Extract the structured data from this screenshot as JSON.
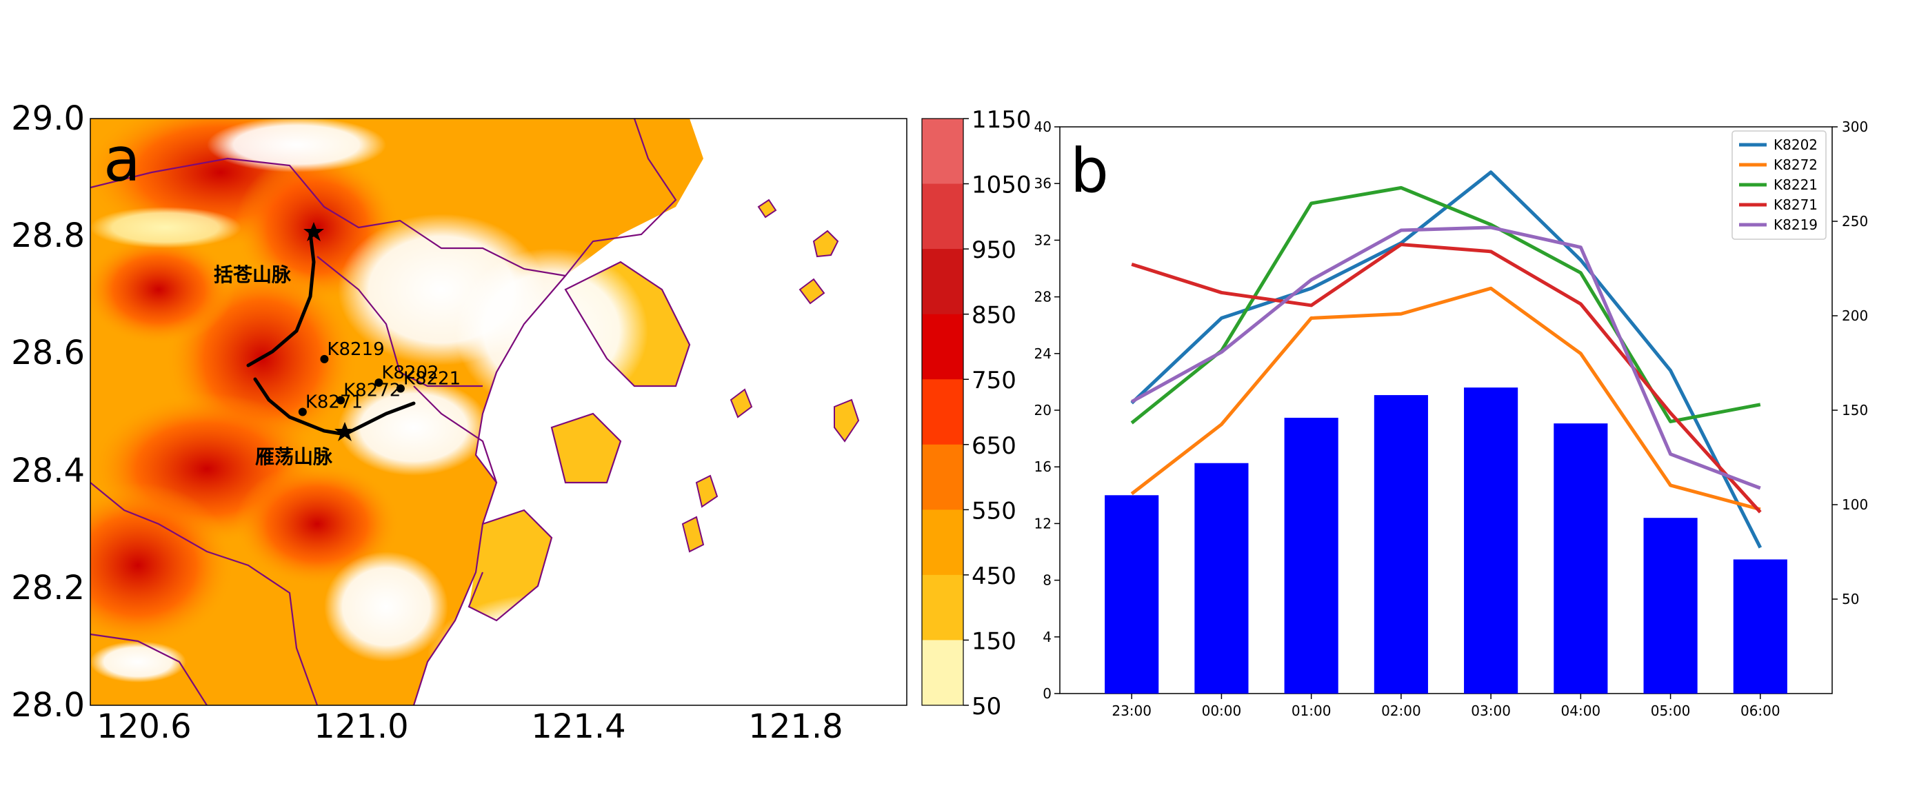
{
  "panel_a": {
    "label": "a",
    "x_ticks": [
      "120.6",
      "121.0",
      "121.4",
      "121.8"
    ],
    "y_ticks": [
      "29.0",
      "28.8",
      "28.6",
      "28.4",
      "28.2",
      "28.0"
    ],
    "colorbar": {
      "ticks": [
        "1150",
        "1050",
        "950",
        "850",
        "750",
        "650",
        "550",
        "450",
        "150",
        "50"
      ],
      "colors": [
        "#e96060",
        "#de3a3a",
        "#cc1515",
        "#dd0000",
        "#ff3a00",
        "#ff7a00",
        "#ffa500",
        "#ffc21a",
        "#fff5b0"
      ]
    },
    "mountain_labels": [
      "括苍山脉",
      "雁荡山脉"
    ],
    "stations": [
      {
        "name": "K8219",
        "lon": 120.93,
        "lat": 28.59
      },
      {
        "name": "K8202",
        "lon": 121.03,
        "lat": 28.55
      },
      {
        "name": "K8221",
        "lon": 121.07,
        "lat": 28.54
      },
      {
        "name": "K8272",
        "lon": 120.96,
        "lat": 28.52
      },
      {
        "name": "K8271",
        "lon": 120.89,
        "lat": 28.5
      }
    ],
    "colors": {
      "coastline": "#7b0a7b",
      "ridge": "#000000"
    }
  },
  "panel_b": {
    "label": "b",
    "left_y_ticks": [
      "0",
      "4",
      "8",
      "12",
      "16",
      "20",
      "24",
      "28",
      "32",
      "36",
      "40"
    ],
    "right_y_ticks": [
      "50",
      "100",
      "150",
      "200",
      "250",
      "300"
    ],
    "x_ticks": [
      "23:00",
      "00:00",
      "01:00",
      "02:00",
      "03:00",
      "04:00",
      "05:00",
      "06:00"
    ]
  },
  "chart_data": {
    "type": "bar+line",
    "categories": [
      "23:00",
      "00:00",
      "01:00",
      "02:00",
      "03:00",
      "04:00",
      "05:00",
      "06:00"
    ],
    "ylim_left": [
      0,
      40
    ],
    "ylim_right": [
      0,
      300
    ],
    "bars": {
      "axis": "right",
      "color": "#0000ff",
      "values": [
        105,
        122,
        146,
        158,
        162,
        143,
        93,
        71
      ]
    },
    "series": [
      {
        "name": "K8202",
        "color": "#1f77b4",
        "values": [
          20.5,
          26.5,
          28.6,
          31.8,
          36.8,
          30.6,
          22.8,
          10.3
        ]
      },
      {
        "name": "K8272",
        "color": "#ff7f0e",
        "values": [
          14.1,
          19.0,
          26.5,
          26.8,
          28.6,
          24.0,
          14.7,
          13.0
        ]
      },
      {
        "name": "K8221",
        "color": "#2ca02c",
        "values": [
          19.1,
          24.2,
          34.6,
          35.7,
          33.1,
          29.7,
          19.2,
          20.4
        ]
      },
      {
        "name": "K8271",
        "color": "#d62728",
        "values": [
          30.3,
          28.3,
          27.4,
          31.7,
          31.2,
          27.5,
          19.8,
          12.8
        ]
      },
      {
        "name": "K8219",
        "color": "#9467bd",
        "values": [
          20.6,
          24.1,
          29.2,
          32.7,
          32.9,
          31.5,
          16.9,
          14.5
        ]
      }
    ],
    "legend": "top-right"
  }
}
